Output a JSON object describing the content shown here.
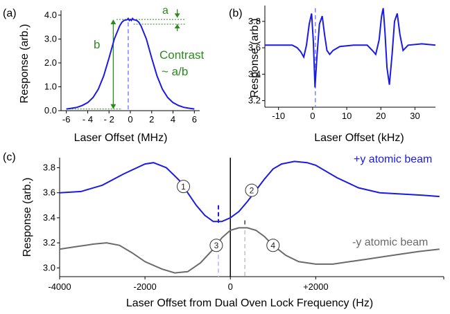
{
  "colors": {
    "blue": "#1a1ae6",
    "green": "#2a8a1e",
    "gray": "#6a6a6a",
    "axis": "#000000",
    "dash_blue": "#8080ff",
    "dash_gray": "#a0a0a0",
    "dash_light_blue": "#c0c8ff"
  },
  "chart_data": [
    {
      "panel_label": "(a)",
      "type": "line",
      "xlabel": "Laser Offset (MHz)",
      "ylabel": "Response (arb.)",
      "xlim": [
        -6.5,
        6.5
      ],
      "ylim": [
        0,
        4.2
      ],
      "xticks": [
        -6,
        -4,
        -2,
        0,
        2,
        4,
        6
      ],
      "xtick_labels": [
        "-6",
        "- 4",
        "- 2",
        "0",
        "2",
        "4",
        "6"
      ],
      "yticks": [
        0,
        1,
        2,
        3,
        4
      ],
      "ytick_labels": [
        "0.0",
        "1.0",
        "2.0",
        "3.0",
        "4.0"
      ],
      "series": [
        {
          "color": "blue",
          "x": [
            -6,
            -5.5,
            -5,
            -4.5,
            -4,
            -3.5,
            -3,
            -2.5,
            -2,
            -1.5,
            -1,
            -0.8,
            -0.6,
            -0.4,
            -0.3,
            -0.2,
            -0.1,
            0,
            0.1,
            0.2,
            0.3,
            0.4,
            0.6,
            0.8,
            1,
            1.5,
            2,
            2.5,
            3,
            3.5,
            4,
            4.5,
            5,
            5.5,
            6
          ],
          "y": [
            0.07,
            0.1,
            0.14,
            0.22,
            0.34,
            0.55,
            0.9,
            1.45,
            2.2,
            3.0,
            3.55,
            3.7,
            3.78,
            3.8,
            3.81,
            3.86,
            3.78,
            3.82,
            3.78,
            3.86,
            3.81,
            3.8,
            3.78,
            3.7,
            3.55,
            3.0,
            2.2,
            1.45,
            0.9,
            0.55,
            0.34,
            0.22,
            0.14,
            0.1,
            0.07
          ]
        }
      ],
      "annotations": {
        "a": "a",
        "b": "b",
        "contrast_line1": "Contrast",
        "contrast_line2": "~ a/b",
        "a_range": [
          3.62,
          3.9
        ],
        "b_range": [
          0.07,
          3.82
        ],
        "dashed_x": -0.2
      }
    },
    {
      "panel_label": "(b)",
      "type": "line",
      "xlabel": "Laser Offset (kHz)",
      "ylabel": "Response (arb.)",
      "xlim": [
        -14,
        36
      ],
      "ylim": [
        3.15,
        3.92
      ],
      "xticks": [
        -10,
        0,
        10,
        20,
        30
      ],
      "xtick_labels": [
        "-10",
        "0",
        "10",
        "20",
        "30"
      ],
      "yticks": [
        3.2,
        3.4,
        3.6,
        3.8
      ],
      "ytick_labels": [
        "3.2",
        "3.4",
        "3.6",
        "3.8"
      ],
      "series": [
        {
          "color": "blue",
          "x": [
            -14,
            -10,
            -6,
            -4.5,
            -3.5,
            -2.6,
            -1.8,
            -1.0,
            -0.3,
            0.2,
            0.7,
            1.3,
            2.0,
            2.8,
            3.5,
            4.2,
            5.0,
            6.0,
            8.0,
            12,
            16,
            17.5,
            18.5,
            19.5,
            20.2,
            20.7,
            21.2,
            21.8,
            22.5,
            23.3,
            24.0,
            24.8,
            25.6,
            26.5,
            28,
            32,
            36
          ],
          "y": [
            3.62,
            3.62,
            3.62,
            3.6,
            3.57,
            3.53,
            3.62,
            3.78,
            3.86,
            3.65,
            3.3,
            3.55,
            3.78,
            3.84,
            3.7,
            3.58,
            3.55,
            3.58,
            3.61,
            3.62,
            3.62,
            3.58,
            3.55,
            3.66,
            3.84,
            3.9,
            3.72,
            3.45,
            3.32,
            3.55,
            3.8,
            3.86,
            3.7,
            3.58,
            3.62,
            3.63,
            3.62
          ]
        }
      ],
      "annotations": {
        "dashed_x": 0.8
      }
    },
    {
      "panel_label": "(c)",
      "type": "line",
      "xlabel": "Laser Offset from Dual Oven Lock Frequency (Hz)",
      "ylabel": "Response (arb.)",
      "xlim": [
        -4000,
        5000
      ],
      "ylim": [
        2.93,
        3.88
      ],
      "xticks": [
        -4000,
        -2000,
        0,
        2000
      ],
      "xtick_labels": [
        "-4000",
        "-2000",
        "0",
        "+2000"
      ],
      "yticks": [
        3.0,
        3.2,
        3.4,
        3.6,
        3.8
      ],
      "ytick_labels": [
        "3.0",
        "3.2",
        "3.4",
        "3.6",
        "3.8"
      ],
      "series": [
        {
          "name": "+y atomic beam",
          "color": "blue",
          "x": [
            -4000,
            -3500,
            -3000,
            -2500,
            -2000,
            -1800,
            -1500,
            -1200,
            -1000,
            -800,
            -600,
            -400,
            -200,
            0,
            200,
            400,
            600,
            800,
            1000,
            1200,
            1500,
            1800,
            2000,
            2500,
            3000,
            3500,
            4000,
            4500,
            4900
          ],
          "y": [
            3.6,
            3.61,
            3.66,
            3.75,
            3.83,
            3.84,
            3.8,
            3.7,
            3.6,
            3.5,
            3.42,
            3.37,
            3.37,
            3.4,
            3.45,
            3.53,
            3.62,
            3.71,
            3.79,
            3.83,
            3.85,
            3.84,
            3.82,
            3.72,
            3.64,
            3.6,
            3.59,
            3.58,
            3.57
          ]
        },
        {
          "name": "-y atomic beam",
          "color": "gray",
          "x": [
            -4000,
            -3600,
            -3200,
            -2900,
            -2600,
            -2300,
            -2000,
            -1600,
            -1300,
            -1000,
            -700,
            -400,
            -200,
            0,
            200,
            400,
            600,
            800,
            1000,
            1300,
            1600,
            2000,
            2400,
            2800,
            3200,
            3600,
            4000,
            4400,
            4900
          ],
          "y": [
            3.15,
            3.17,
            3.19,
            3.2,
            3.18,
            3.12,
            3.05,
            2.99,
            2.96,
            2.97,
            3.04,
            3.15,
            3.24,
            3.3,
            3.32,
            3.32,
            3.3,
            3.25,
            3.18,
            3.1,
            3.05,
            3.03,
            3.03,
            3.05,
            3.07,
            3.09,
            3.11,
            3.13,
            3.15
          ]
        }
      ],
      "markers": [
        {
          "label": "1",
          "x": -1100,
          "y": 3.65
        },
        {
          "label": "2",
          "x": 500,
          "y": 3.62
        },
        {
          "label": "3",
          "x": -330,
          "y": 3.18
        },
        {
          "label": "4",
          "x": 1000,
          "y": 3.18
        }
      ],
      "dashes": [
        {
          "color": "blue",
          "x": -280,
          "y0": 3.36,
          "y1": 3.5
        },
        {
          "color": "light_blue",
          "x": -280,
          "y0": 2.93,
          "y1": 3.16
        },
        {
          "color": "gray",
          "x": 340,
          "y0": 3.33,
          "y1": 3.38
        },
        {
          "color": "light_gray",
          "x": 340,
          "y0": 2.93,
          "y1": 3.3
        }
      ],
      "vline_x": 0
    }
  ]
}
